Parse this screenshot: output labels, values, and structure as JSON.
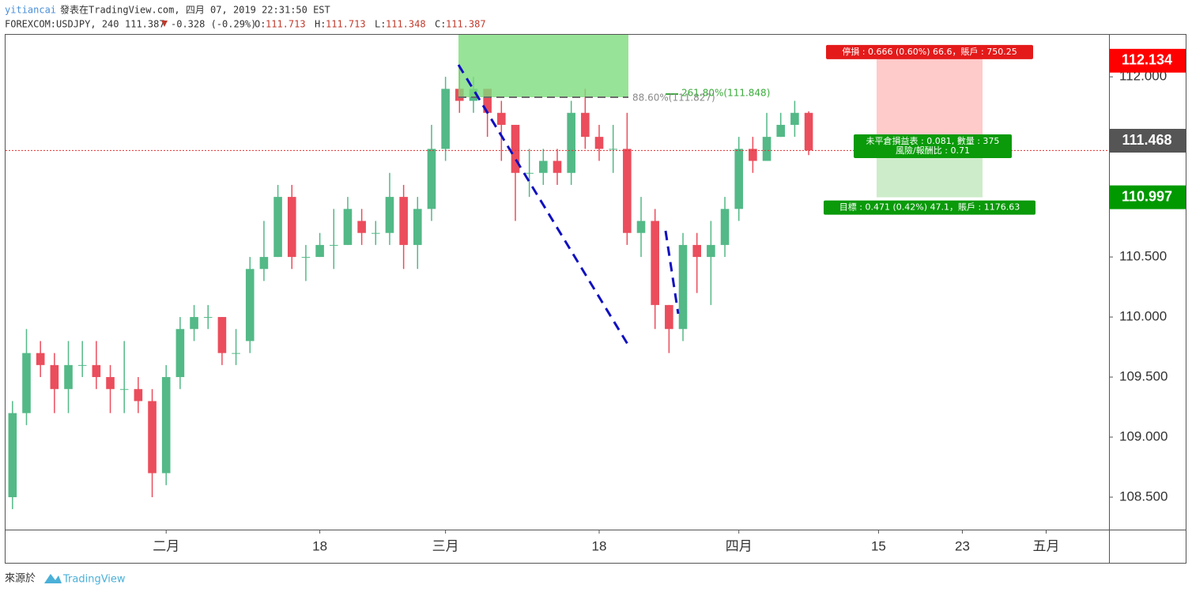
{
  "header": {
    "author": "yitiancai",
    "published": "發表在TradingView.com, 四月 07, 2019 22:31:50 EST",
    "symbol": "FOREXCOM:USDJPY, 240",
    "last": "111.387",
    "change": "-0.328 (-0.29%)",
    "ohlc": [
      {
        "label": "O:",
        "value": "111.713"
      },
      {
        "label": "H:",
        "value": "111.713"
      },
      {
        "label": "L:",
        "value": "111.348"
      },
      {
        "label": "C:",
        "value": "111.387"
      }
    ]
  },
  "footer": {
    "source": "來源於",
    "brand": "TradingView"
  },
  "chart_data": {
    "type": "candlestick",
    "x": [
      "2019-01-17",
      "2019-01-18",
      "2019-01-21",
      "2019-01-22",
      "2019-01-23",
      "2019-01-24",
      "2019-01-25",
      "2019-01-28",
      "2019-01-29",
      "2019-01-30",
      "2019-01-31",
      "2019-02-01",
      "2019-02-04",
      "2019-02-05",
      "2019-02-06",
      "2019-02-07",
      "2019-02-08",
      "2019-02-11",
      "2019-02-12",
      "2019-02-13",
      "2019-02-14",
      "2019-02-15",
      "2019-02-18",
      "2019-02-19",
      "2019-02-20",
      "2019-02-21",
      "2019-02-22",
      "2019-02-25",
      "2019-02-26",
      "2019-02-27",
      "2019-02-28",
      "2019-03-01",
      "2019-03-04",
      "2019-03-05",
      "2019-03-06",
      "2019-03-07",
      "2019-03-08",
      "2019-03-11",
      "2019-03-12",
      "2019-03-13",
      "2019-03-14",
      "2019-03-15",
      "2019-03-18",
      "2019-03-19",
      "2019-03-20",
      "2019-03-21",
      "2019-03-22",
      "2019-03-25",
      "2019-03-26",
      "2019-03-27",
      "2019-03-28",
      "2019-03-29",
      "2019-04-01",
      "2019-04-02",
      "2019-04-03",
      "2019-04-04",
      "2019-04-05",
      "2019-04-08"
    ],
    "open": [
      108.5,
      109.2,
      109.7,
      109.6,
      109.4,
      109.6,
      109.6,
      109.5,
      109.4,
      109.4,
      109.3,
      108.7,
      109.5,
      109.9,
      110.0,
      110.0,
      109.7,
      109.8,
      110.4,
      110.5,
      111.0,
      110.5,
      110.5,
      110.6,
      110.6,
      110.8,
      110.7,
      110.7,
      111.0,
      110.6,
      110.9,
      111.4,
      111.9,
      111.8,
      111.9,
      111.7,
      111.6,
      111.2,
      111.2,
      111.3,
      111.2,
      111.7,
      111.5,
      111.4,
      111.4,
      110.7,
      110.8,
      110.1,
      109.9,
      110.6,
      110.5,
      110.6,
      110.9,
      111.4,
      111.3,
      111.5,
      111.6,
      111.7
    ],
    "high": [
      109.3,
      109.9,
      109.8,
      109.7,
      109.8,
      109.8,
      109.8,
      109.6,
      109.8,
      109.5,
      109.4,
      109.6,
      110.0,
      110.1,
      110.1,
      110.0,
      109.9,
      110.5,
      110.8,
      111.1,
      111.1,
      110.6,
      110.7,
      110.9,
      111.0,
      110.9,
      110.8,
      111.2,
      111.1,
      111.0,
      111.6,
      112.0,
      112.1,
      112.0,
      111.9,
      111.8,
      111.6,
      111.4,
      111.4,
      111.4,
      111.8,
      111.9,
      111.6,
      111.6,
      111.7,
      111.0,
      110.9,
      110.1,
      110.7,
      110.7,
      110.8,
      111.0,
      111.5,
      111.5,
      111.7,
      111.7,
      111.8,
      111.713
    ],
    "low": [
      108.4,
      109.1,
      109.5,
      109.2,
      109.2,
      109.5,
      109.4,
      109.2,
      109.2,
      109.2,
      108.5,
      108.6,
      109.4,
      109.8,
      109.9,
      109.6,
      109.6,
      109.7,
      110.3,
      110.5,
      110.4,
      110.3,
      110.5,
      110.4,
      110.6,
      110.6,
      110.6,
      110.6,
      110.4,
      110.4,
      110.8,
      111.3,
      111.7,
      111.7,
      111.5,
      111.3,
      110.8,
      111.0,
      111.1,
      111.1,
      111.1,
      111.4,
      111.3,
      111.2,
      110.6,
      110.5,
      109.9,
      109.7,
      109.8,
      110.2,
      110.1,
      110.5,
      110.8,
      111.2,
      111.3,
      111.5,
      111.5,
      111.348
    ],
    "close": [
      109.2,
      109.7,
      109.6,
      109.4,
      109.6,
      109.6,
      109.5,
      109.4,
      109.4,
      109.3,
      108.7,
      109.5,
      109.9,
      110.0,
      110.0,
      109.7,
      109.7,
      110.4,
      110.5,
      111.0,
      110.5,
      110.5,
      110.6,
      110.6,
      110.9,
      110.7,
      110.7,
      111.0,
      110.6,
      110.9,
      111.4,
      111.9,
      111.8,
      111.9,
      111.7,
      111.6,
      111.2,
      111.2,
      111.3,
      111.2,
      111.7,
      111.5,
      111.4,
      111.4,
      110.7,
      110.8,
      110.1,
      109.9,
      110.6,
      110.5,
      110.6,
      110.9,
      111.4,
      111.3,
      111.5,
      111.6,
      111.7,
      111.387
    ],
    "xlim": [
      "2019-01-17",
      "2019-05-08"
    ],
    "xticks": [
      {
        "value": "2019-02-01",
        "label": "二月"
      },
      {
        "value": "2019-02-18",
        "label": "18"
      },
      {
        "value": "2019-03-01",
        "label": "三月"
      },
      {
        "value": "2019-03-18",
        "label": "18"
      },
      {
        "value": "2019-04-01",
        "label": "四月"
      },
      {
        "value": "2019-04-15",
        "label": "15"
      },
      {
        "value": "2019-04-23",
        "label": "23"
      },
      {
        "value": "2019-05-01",
        "label": "五月"
      }
    ],
    "ylim": [
      108.23,
      112.35
    ],
    "yticks": [
      {
        "value": 108.5,
        "label": "108.500"
      },
      {
        "value": 109,
        "label": "109.000"
      },
      {
        "value": 109.5,
        "label": "109.500"
      },
      {
        "value": 110,
        "label": "110.000"
      },
      {
        "value": 110.5,
        "label": "110.500"
      },
      {
        "value": 111,
        "label": "111.000"
      },
      {
        "value": 111.5,
        "label": "111.500"
      },
      {
        "value": 112,
        "label": "112.000"
      }
    ],
    "up_color": "#53b987",
    "down_color": "#eb4d5c",
    "price_markers": [
      {
        "value": 112.134,
        "color": "#ff0000"
      },
      {
        "value": 111.468,
        "color": "#555555"
      },
      {
        "value": 110.997,
        "color": "#009900"
      }
    ],
    "fib_labels": [
      "88.60%(111.827)",
      "261.80%(111.848)"
    ],
    "position": {
      "stop": 112.134,
      "entry": 111.468,
      "target": 110.997,
      "stop_label": "停損 : 0.666 (0.60%) 66.6，賬戶 : 750.25",
      "pnl_label": "未平倉損益表 : 0.081, 數量 : 375",
      "rr_label": "風險/報酬比 : 0.71",
      "target_label": "目標 : 0.471 (0.42%) 47.1，賬戶 : 1176.63"
    }
  }
}
